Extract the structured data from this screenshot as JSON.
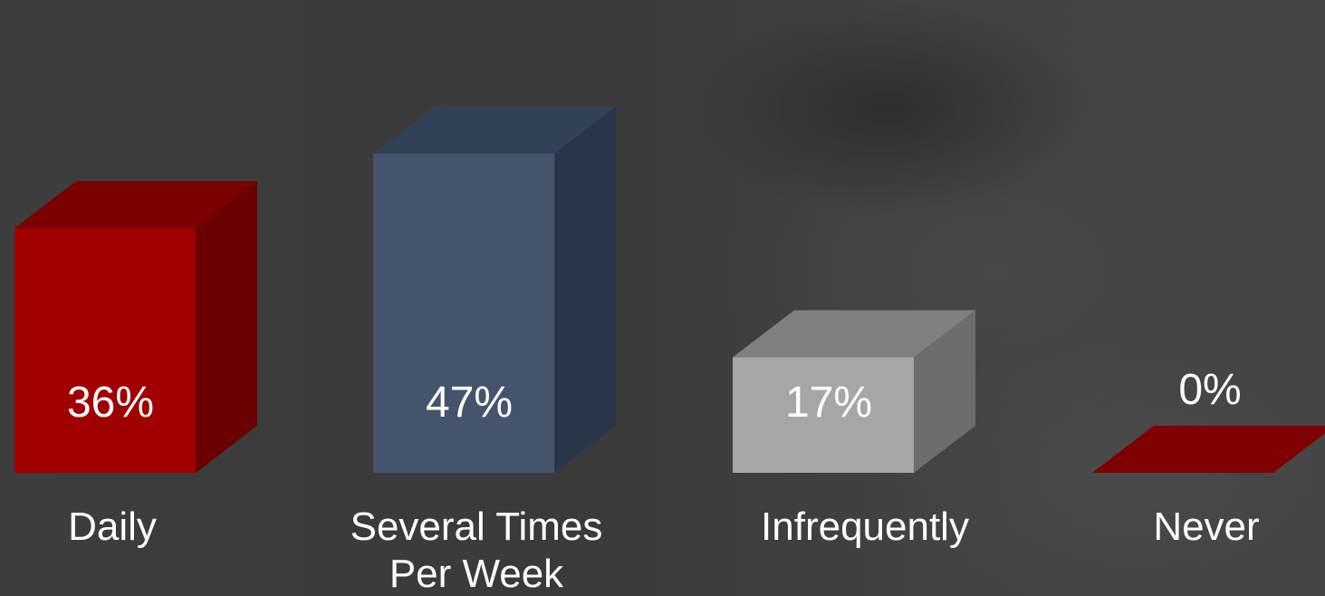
{
  "chart_data": {
    "type": "bar",
    "style": "3d",
    "categories": [
      "Daily",
      "Several Times Per Week",
      "Infrequently",
      "Never"
    ],
    "category_label_lines": [
      [
        "Daily"
      ],
      [
        "Several Times",
        "Per Week"
      ],
      [
        "Infrequently"
      ],
      [
        "Never"
      ]
    ],
    "values": [
      36,
      47,
      17,
      0
    ],
    "value_labels": [
      "36%",
      "47%",
      "17%",
      "0%"
    ],
    "unit": "%",
    "grid": false,
    "legend": "none",
    "bar_colors": [
      "#a00000",
      "#45546c",
      "#a6a6a6",
      "#a00000"
    ],
    "bar_side_colors": [
      "#6b0000",
      "#29364a",
      "#6d6d6d",
      "#6b0000"
    ],
    "bar_top_colors": [
      "#7b0000",
      "#334156",
      "#808080",
      "#7e0000"
    ]
  }
}
